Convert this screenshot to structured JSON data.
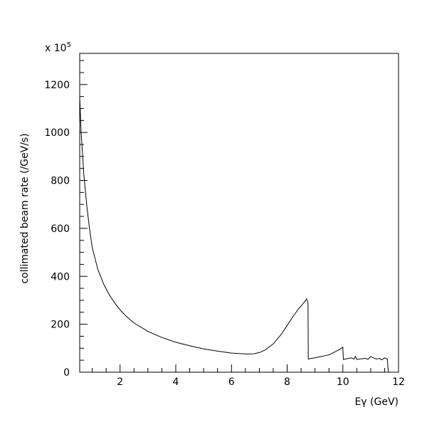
{
  "chart_data": {
    "type": "line",
    "title": "",
    "xlabel": "Eγ (GeV)",
    "ylabel": "collimated beam rate (/GeV/s)",
    "y_multiplier_label": "x 10",
    "y_multiplier_exponent": "5",
    "xlim": [
      0.55,
      12
    ],
    "ylim": [
      0,
      1330
    ],
    "xticks": [
      2,
      4,
      6,
      8,
      10,
      12
    ],
    "yticks": [
      0,
      200,
      400,
      600,
      800,
      1000,
      1200
    ],
    "grid": false,
    "legend": "none",
    "line_color": "#000000",
    "series": [
      {
        "x": [
          0.55,
          0.6,
          0.7,
          0.8,
          0.9,
          1.0,
          1.2,
          1.4,
          1.6,
          1.8,
          2.0,
          2.2,
          2.5,
          3.0,
          3.5,
          4.0,
          4.5,
          5.0,
          5.5,
          6.0,
          6.5,
          6.8,
          7.0,
          7.2,
          7.5,
          7.8,
          8.0,
          8.2,
          8.4,
          8.6,
          8.7,
          8.75,
          8.76,
          8.8,
          9.0,
          9.5,
          9.9,
          10.0,
          10.02,
          10.3,
          10.4,
          10.45,
          10.5,
          10.8,
          10.9,
          11.0,
          11.2,
          11.3,
          11.4,
          11.5,
          11.6,
          11.62,
          11.64
        ],
        "y": [
          1150,
          1000,
          820,
          700,
          600,
          520,
          430,
          370,
          325,
          290,
          260,
          235,
          205,
          170,
          145,
          125,
          110,
          97,
          88,
          80,
          76,
          77,
          82,
          92,
          118,
          160,
          195,
          230,
          263,
          290,
          305,
          290,
          55,
          56,
          60,
          72,
          96,
          105,
          53,
          60,
          55,
          66,
          53,
          58,
          54,
          65,
          55,
          58,
          52,
          60,
          55,
          20,
          0
        ]
      }
    ]
  }
}
